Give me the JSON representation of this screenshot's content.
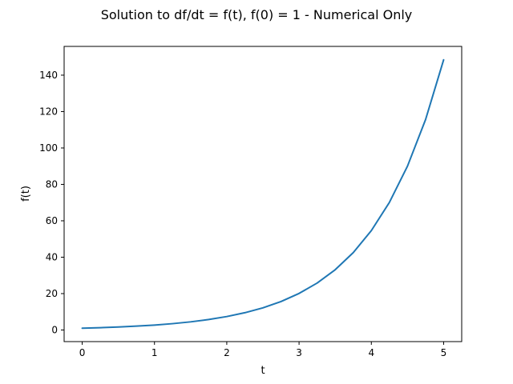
{
  "chart_data": {
    "type": "line",
    "title": "Solution to df/dt = f(t), f(0) = 1 - Numerical Only",
    "xlabel": "t",
    "ylabel": "f(t)",
    "xlim": [
      -0.25,
      5.25
    ],
    "ylim": [
      -6.37,
      155.8
    ],
    "xticks": [
      0,
      1,
      2,
      3,
      4,
      5
    ],
    "xtick_labels": [
      "0",
      "1",
      "2",
      "3",
      "4",
      "5"
    ],
    "yticks": [
      0,
      20,
      40,
      60,
      80,
      100,
      120,
      140
    ],
    "ytick_labels": [
      "0",
      "20",
      "40",
      "60",
      "80",
      "100",
      "120",
      "140"
    ],
    "grid": false,
    "legend": "none",
    "series": [
      {
        "color": "#1f77b4",
        "x": [
          0,
          0.25,
          0.5,
          0.75,
          1,
          1.25,
          1.5,
          1.75,
          2,
          2.25,
          2.5,
          2.75,
          3,
          3.25,
          3.5,
          3.75,
          4,
          4.25,
          4.5,
          4.75,
          5
        ],
        "y": [
          1,
          1.28,
          1.65,
          2.12,
          2.72,
          3.49,
          4.48,
          5.75,
          7.39,
          9.49,
          12.18,
          15.64,
          20.09,
          25.79,
          33.12,
          42.52,
          54.6,
          70.11,
          90.02,
          115.58,
          148.41
        ]
      }
    ]
  }
}
